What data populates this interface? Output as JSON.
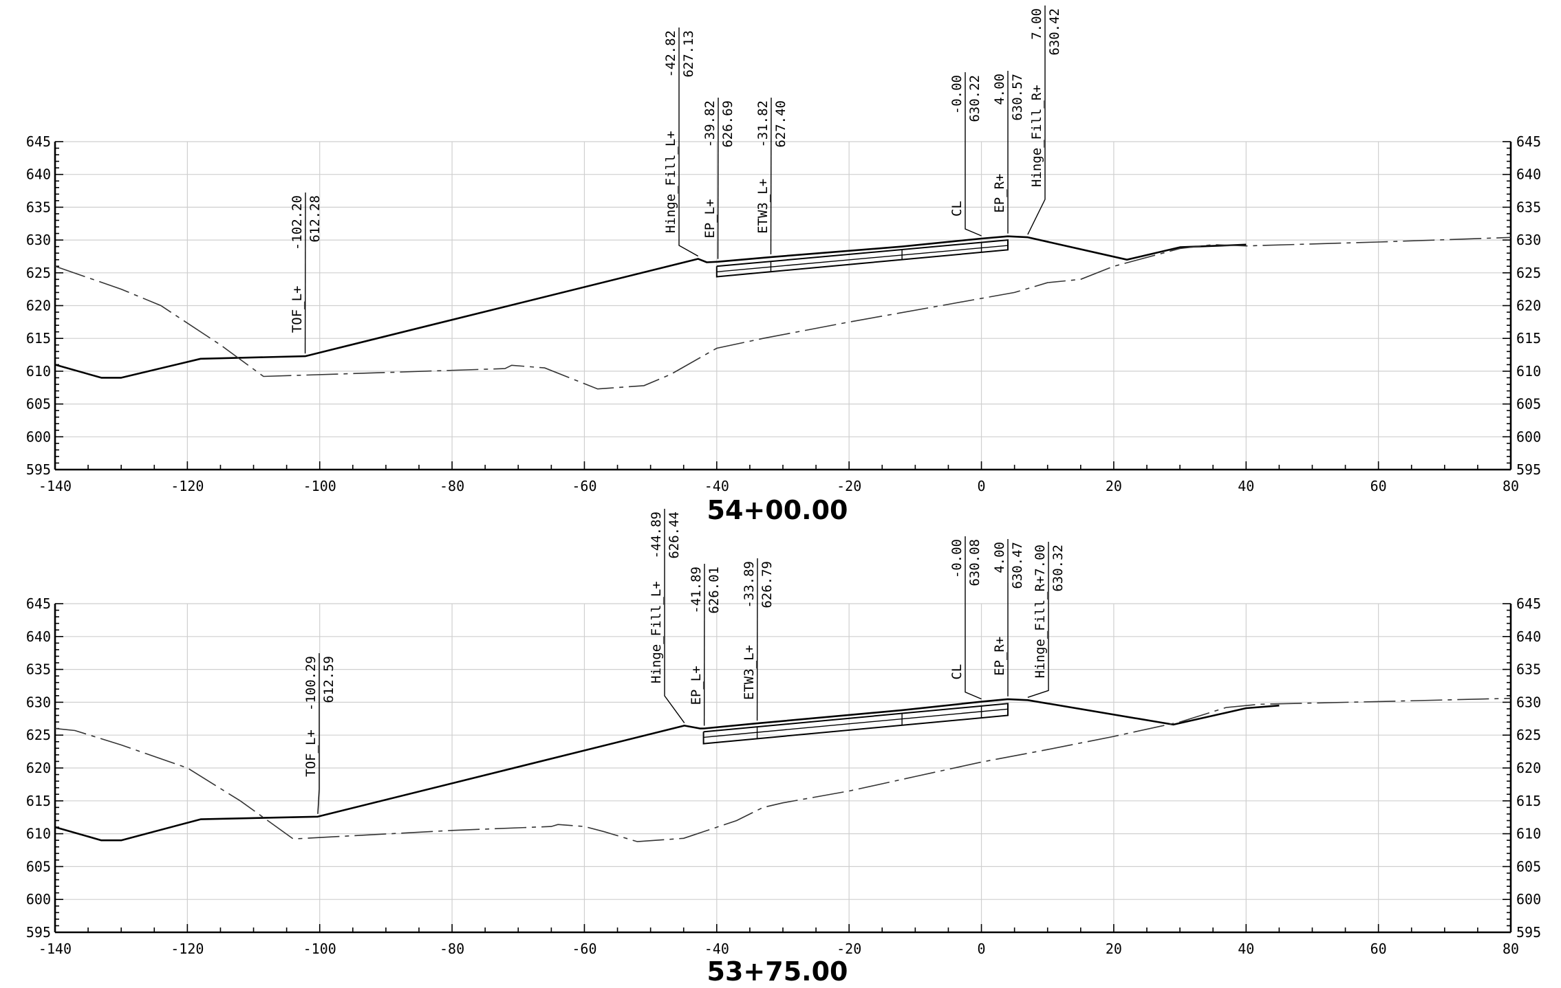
{
  "chart_data": [
    {
      "type": "line",
      "title": "54+00.00",
      "xlim": [
        -140,
        80
      ],
      "ylim": [
        595,
        645
      ],
      "x_ticks": [
        "-140",
        "-120",
        "-100",
        "-80",
        "-60",
        "-40",
        "-20",
        "0",
        "20",
        "40",
        "60",
        "80"
      ],
      "y_ticks": [
        "595",
        "600",
        "605",
        "610",
        "615",
        "620",
        "625",
        "630",
        "635",
        "640",
        "645"
      ],
      "grid": true,
      "series": [
        {
          "style": "solid",
          "points": [
            [
              -140,
              611.0
            ],
            [
              -133,
              609.0
            ],
            [
              -130,
              609.0
            ],
            [
              -118,
              611.9
            ],
            [
              -102.2,
              612.28
            ],
            [
              -42.82,
              627.13
            ],
            [
              -41.5,
              626.6
            ],
            [
              -39.82,
              626.69
            ],
            [
              -31.82,
              627.4
            ],
            [
              -12,
              629.0
            ],
            [
              0,
              630.22
            ],
            [
              4.0,
              630.57
            ],
            [
              7.0,
              630.42
            ],
            [
              22,
              627.0
            ],
            [
              30,
              628.9
            ],
            [
              40,
              629.3
            ]
          ]
        },
        {
          "style": "dashed",
          "points": [
            [
              -140,
              626.0
            ],
            [
              -130,
              622.5
            ],
            [
              -124,
              620.0
            ],
            [
              -115,
              614.0
            ],
            [
              -108.5,
              609.2
            ],
            [
              -90,
              609.8
            ],
            [
              -72,
              610.4
            ],
            [
              -71,
              610.9
            ],
            [
              -66,
              610.5
            ],
            [
              -58,
              607.3
            ],
            [
              -51,
              607.8
            ],
            [
              -47,
              609.5
            ],
            [
              -40,
              613.5
            ],
            [
              -33,
              615.0
            ],
            [
              -20,
              617.5
            ],
            [
              -5,
              620.2
            ],
            [
              5,
              622.0
            ],
            [
              10,
              623.5
            ],
            [
              15,
              624.0
            ],
            [
              20,
              626.0
            ],
            [
              30,
              628.7
            ],
            [
              35,
              629.3
            ],
            [
              40,
              629.1
            ],
            [
              60,
              629.7
            ],
            [
              80,
              630.4
            ]
          ]
        },
        {
          "style": "pavement",
          "points": [
            [
              -40,
              626.0
            ],
            [
              4.0,
              630.0
            ],
            [
              4.0,
              628.5
            ],
            [
              -40,
              624.4
            ],
            [
              -40,
              626.0
            ]
          ]
        }
      ],
      "callouts": [
        {
          "name": "TOF_L",
          "label": "TOF_L+",
          "offset": "-102.20",
          "elev": "612.28",
          "x": -102.2,
          "y": 612.28
        },
        {
          "name": "Hinge_Fill_L",
          "label": "Hinge_Fill_L+",
          "offset": "-42.82",
          "elev": "627.13",
          "x": -42.82,
          "y": 627.13
        },
        {
          "name": "EP_L",
          "label": "EP_L+",
          "offset": "-39.82",
          "elev": "626.69",
          "x": -39.82,
          "y": 626.69
        },
        {
          "name": "ETW3_L",
          "label": "ETW3_L+",
          "offset": "-31.82",
          "elev": "627.40",
          "x": -31.82,
          "y": 627.4
        },
        {
          "name": "CL",
          "label": "CL",
          "offset": "-0.00",
          "elev": "630.22",
          "x": 0,
          "y": 630.22
        },
        {
          "name": "EP_R",
          "label": "EP_R+",
          "offset": "4.00",
          "elev": "630.57",
          "x": 4.0,
          "y": 630.57
        },
        {
          "name": "Hinge_Fill_R",
          "label": "Hinge_Fill_R+",
          "offset": "7.00",
          "elev": "630.42",
          "x": 7.0,
          "y": 630.42
        }
      ]
    },
    {
      "type": "line",
      "title": "53+75.00",
      "xlim": [
        -140,
        80
      ],
      "ylim": [
        595,
        645
      ],
      "x_ticks": [
        "-140",
        "-120",
        "-100",
        "-80",
        "-60",
        "-40",
        "-20",
        "0",
        "20",
        "40",
        "60",
        "80"
      ],
      "y_ticks": [
        "595",
        "600",
        "605",
        "610",
        "615",
        "620",
        "625",
        "630",
        "635",
        "640",
        "645"
      ],
      "grid": true,
      "series": [
        {
          "style": "solid",
          "points": [
            [
              -140,
              611.0
            ],
            [
              -133,
              609.0
            ],
            [
              -130,
              609.0
            ],
            [
              -118,
              612.2
            ],
            [
              -100.29,
              612.59
            ],
            [
              -44.89,
              626.44
            ],
            [
              -42.5,
              626.0
            ],
            [
              -41.89,
              626.01
            ],
            [
              -33.89,
              626.79
            ],
            [
              -12,
              628.8
            ],
            [
              0,
              630.08
            ],
            [
              4.0,
              630.47
            ],
            [
              7.0,
              630.32
            ],
            [
              29,
              626.6
            ],
            [
              40,
              629.1
            ],
            [
              45,
              629.5
            ]
          ]
        },
        {
          "style": "dashed",
          "points": [
            [
              -140,
              626.0
            ],
            [
              -137,
              625.7
            ],
            [
              -130,
              623.5
            ],
            [
              -120,
              620.0
            ],
            [
              -112,
              615.0
            ],
            [
              -104,
              609.2
            ],
            [
              -80,
              610.5
            ],
            [
              -65,
              611.1
            ],
            [
              -64,
              611.4
            ],
            [
              -60,
              611.1
            ],
            [
              -57,
              610.3
            ],
            [
              -52,
              608.8
            ],
            [
              -45,
              609.3
            ],
            [
              -37,
              612.0
            ],
            [
              -33,
              614.0
            ],
            [
              -30,
              614.7
            ],
            [
              -20,
              616.5
            ],
            [
              -10,
              618.7
            ],
            [
              0,
              620.9
            ],
            [
              10,
              622.8
            ],
            [
              20,
              624.8
            ],
            [
              30,
              627.0
            ],
            [
              37,
              629.2
            ],
            [
              42,
              629.7
            ],
            [
              60,
              630.1
            ],
            [
              80,
              630.6
            ]
          ]
        },
        {
          "style": "pavement",
          "points": [
            [
              -42,
              625.5
            ],
            [
              4.0,
              629.8
            ],
            [
              4.0,
              628.0
            ],
            [
              -42,
              623.7
            ],
            [
              -42,
              625.5
            ]
          ]
        }
      ],
      "callouts": [
        {
          "name": "TOF_L",
          "label": "TOF_L+",
          "offset": "-100.29",
          "elev": "612.59",
          "x": -100.29,
          "y": 612.59
        },
        {
          "name": "Hinge_Fill_L",
          "label": "Hinge_Fill_L+",
          "offset": "-44.89",
          "elev": "626.44",
          "x": -44.89,
          "y": 626.44
        },
        {
          "name": "EP_L",
          "label": "EP_L+",
          "offset": "-41.89",
          "elev": "626.01",
          "x": -41.89,
          "y": 626.01
        },
        {
          "name": "ETW3_L",
          "label": "ETW3_L+",
          "offset": "-33.89",
          "elev": "626.79",
          "x": -33.89,
          "y": 626.79
        },
        {
          "name": "CL",
          "label": "CL",
          "offset": "-0.00",
          "elev": "630.08",
          "x": 0,
          "y": 630.08
        },
        {
          "name": "EP_R",
          "label": "EP_R+",
          "offset": "4.00",
          "elev": "630.47",
          "x": 4.0,
          "y": 630.47
        },
        {
          "name": "Hinge_Fill_R",
          "label": "Hinge_Fill_R+",
          "offset": "7.00",
          "elev": "630.32",
          "x": 7.0,
          "y": 630.32
        }
      ]
    }
  ]
}
